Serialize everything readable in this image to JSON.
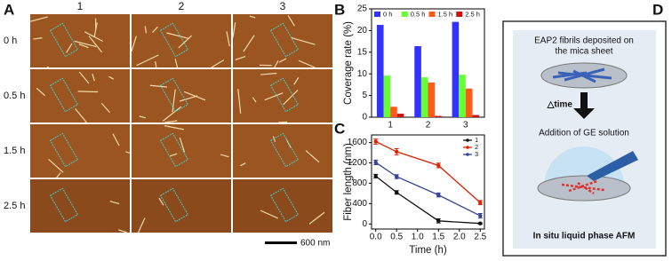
{
  "panel_a": {
    "panel": "A",
    "columns": [
      "1",
      "2",
      "3"
    ],
    "rows": [
      "0 h",
      "0.5 h",
      "1.5 h",
      "2.5 h"
    ],
    "scale_bar": "600 nm"
  },
  "chart_data": [
    {
      "type": "bar",
      "panel": "B",
      "ylabel": "Coverage rate (%)",
      "categories": [
        "1",
        "2",
        "3"
      ],
      "series": [
        {
          "name": "0 h",
          "color": "#3333ff",
          "values": [
            21.3,
            16.4,
            22.0
          ]
        },
        {
          "name": "0.5 h",
          "color": "#66ff33",
          "values": [
            9.6,
            9.2,
            9.8
          ]
        },
        {
          "name": "1.5 h",
          "color": "#ff5a1a",
          "values": [
            2.4,
            8.0,
            6.6
          ]
        },
        {
          "name": "2.5 h",
          "color": "#cc1111",
          "values": [
            0.8,
            0.3,
            0.5
          ]
        }
      ],
      "ylim": [
        0,
        25
      ],
      "yticks": [
        0,
        5,
        10,
        15,
        20,
        25
      ],
      "legend": "top"
    },
    {
      "type": "line",
      "panel": "C",
      "xlabel": "Time (h)",
      "ylabel": "Fiber length (nm)",
      "x": [
        0,
        0.5,
        1.5,
        2.5
      ],
      "series": [
        {
          "name": "1",
          "color": "#111111",
          "values": [
            940,
            620,
            60,
            10
          ],
          "errors": [
            35,
            35,
            40,
            15
          ]
        },
        {
          "name": "2",
          "color": "#dd2200",
          "values": [
            1620,
            1420,
            1150,
            420
          ],
          "errors": [
            50,
            60,
            45,
            40
          ]
        },
        {
          "name": "3",
          "color": "#334499",
          "values": [
            1210,
            930,
            570,
            160
          ],
          "errors": [
            45,
            40,
            40,
            45
          ]
        }
      ],
      "xlim": [
        -0.1,
        2.6
      ],
      "xticks": [
        {
          "value": 0,
          "label": "0.0"
        },
        0.5,
        {
          "value": 1,
          "label": "1.0"
        },
        1.5,
        {
          "value": 2,
          "label": "2.0"
        },
        2.5
      ],
      "ylim": [
        -100,
        1750
      ],
      "yticks": [
        0,
        400,
        800,
        1200,
        1600
      ],
      "legend": "top-right"
    }
  ],
  "diagram": {
    "panel": "D",
    "top_text": [
      "EAP2 fibrils deposited on",
      "the mica sheet"
    ],
    "time_label": "△time",
    "middle_text": "Addition of GE solution",
    "bottom_text": "In situ liquid phase AFM"
  }
}
